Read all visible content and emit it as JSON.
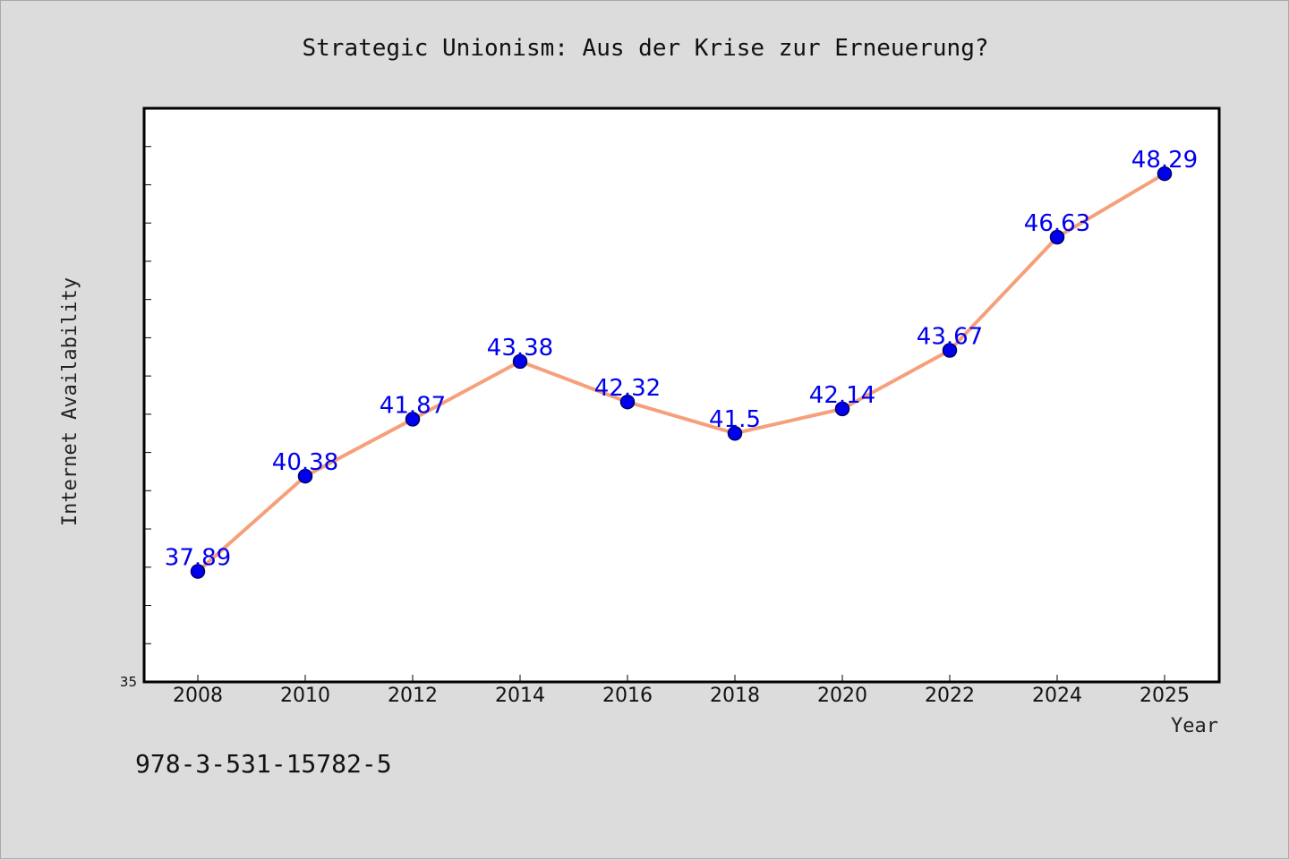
{
  "chart_data": {
    "type": "line",
    "title": "Strategic Unionism: Aus der Krise zur Erneuerung?",
    "xlabel": "Year",
    "ylabel": "Internet Availability",
    "x": [
      "2008",
      "2010",
      "2012",
      "2014",
      "2016",
      "2018",
      "2020",
      "2022",
      "2024",
      "2025"
    ],
    "series": [
      {
        "values": [
          37.89,
          40.38,
          41.87,
          43.38,
          42.32,
          41.5,
          42.14,
          43.67,
          46.63,
          48.29
        ],
        "labels": [
          "37.89",
          "40.38",
          "41.87",
          "43.38",
          "42.32",
          "41.5",
          "42.14",
          "43.67",
          "46.63",
          "48.29"
        ]
      }
    ],
    "y_min_label": "35",
    "ylim": [
      35,
      50
    ],
    "y_minor_step": 1,
    "grid": false,
    "legend": "none",
    "colors": {
      "line": "#f5a07a",
      "marker_fill": "#0000ee",
      "marker_edge": "#000066",
      "data_label": "#0000ee",
      "plot_background": "#ffffff",
      "page_background": "#dcdcdc"
    }
  },
  "footer": {
    "isbn": "978-3-531-15782-5"
  }
}
